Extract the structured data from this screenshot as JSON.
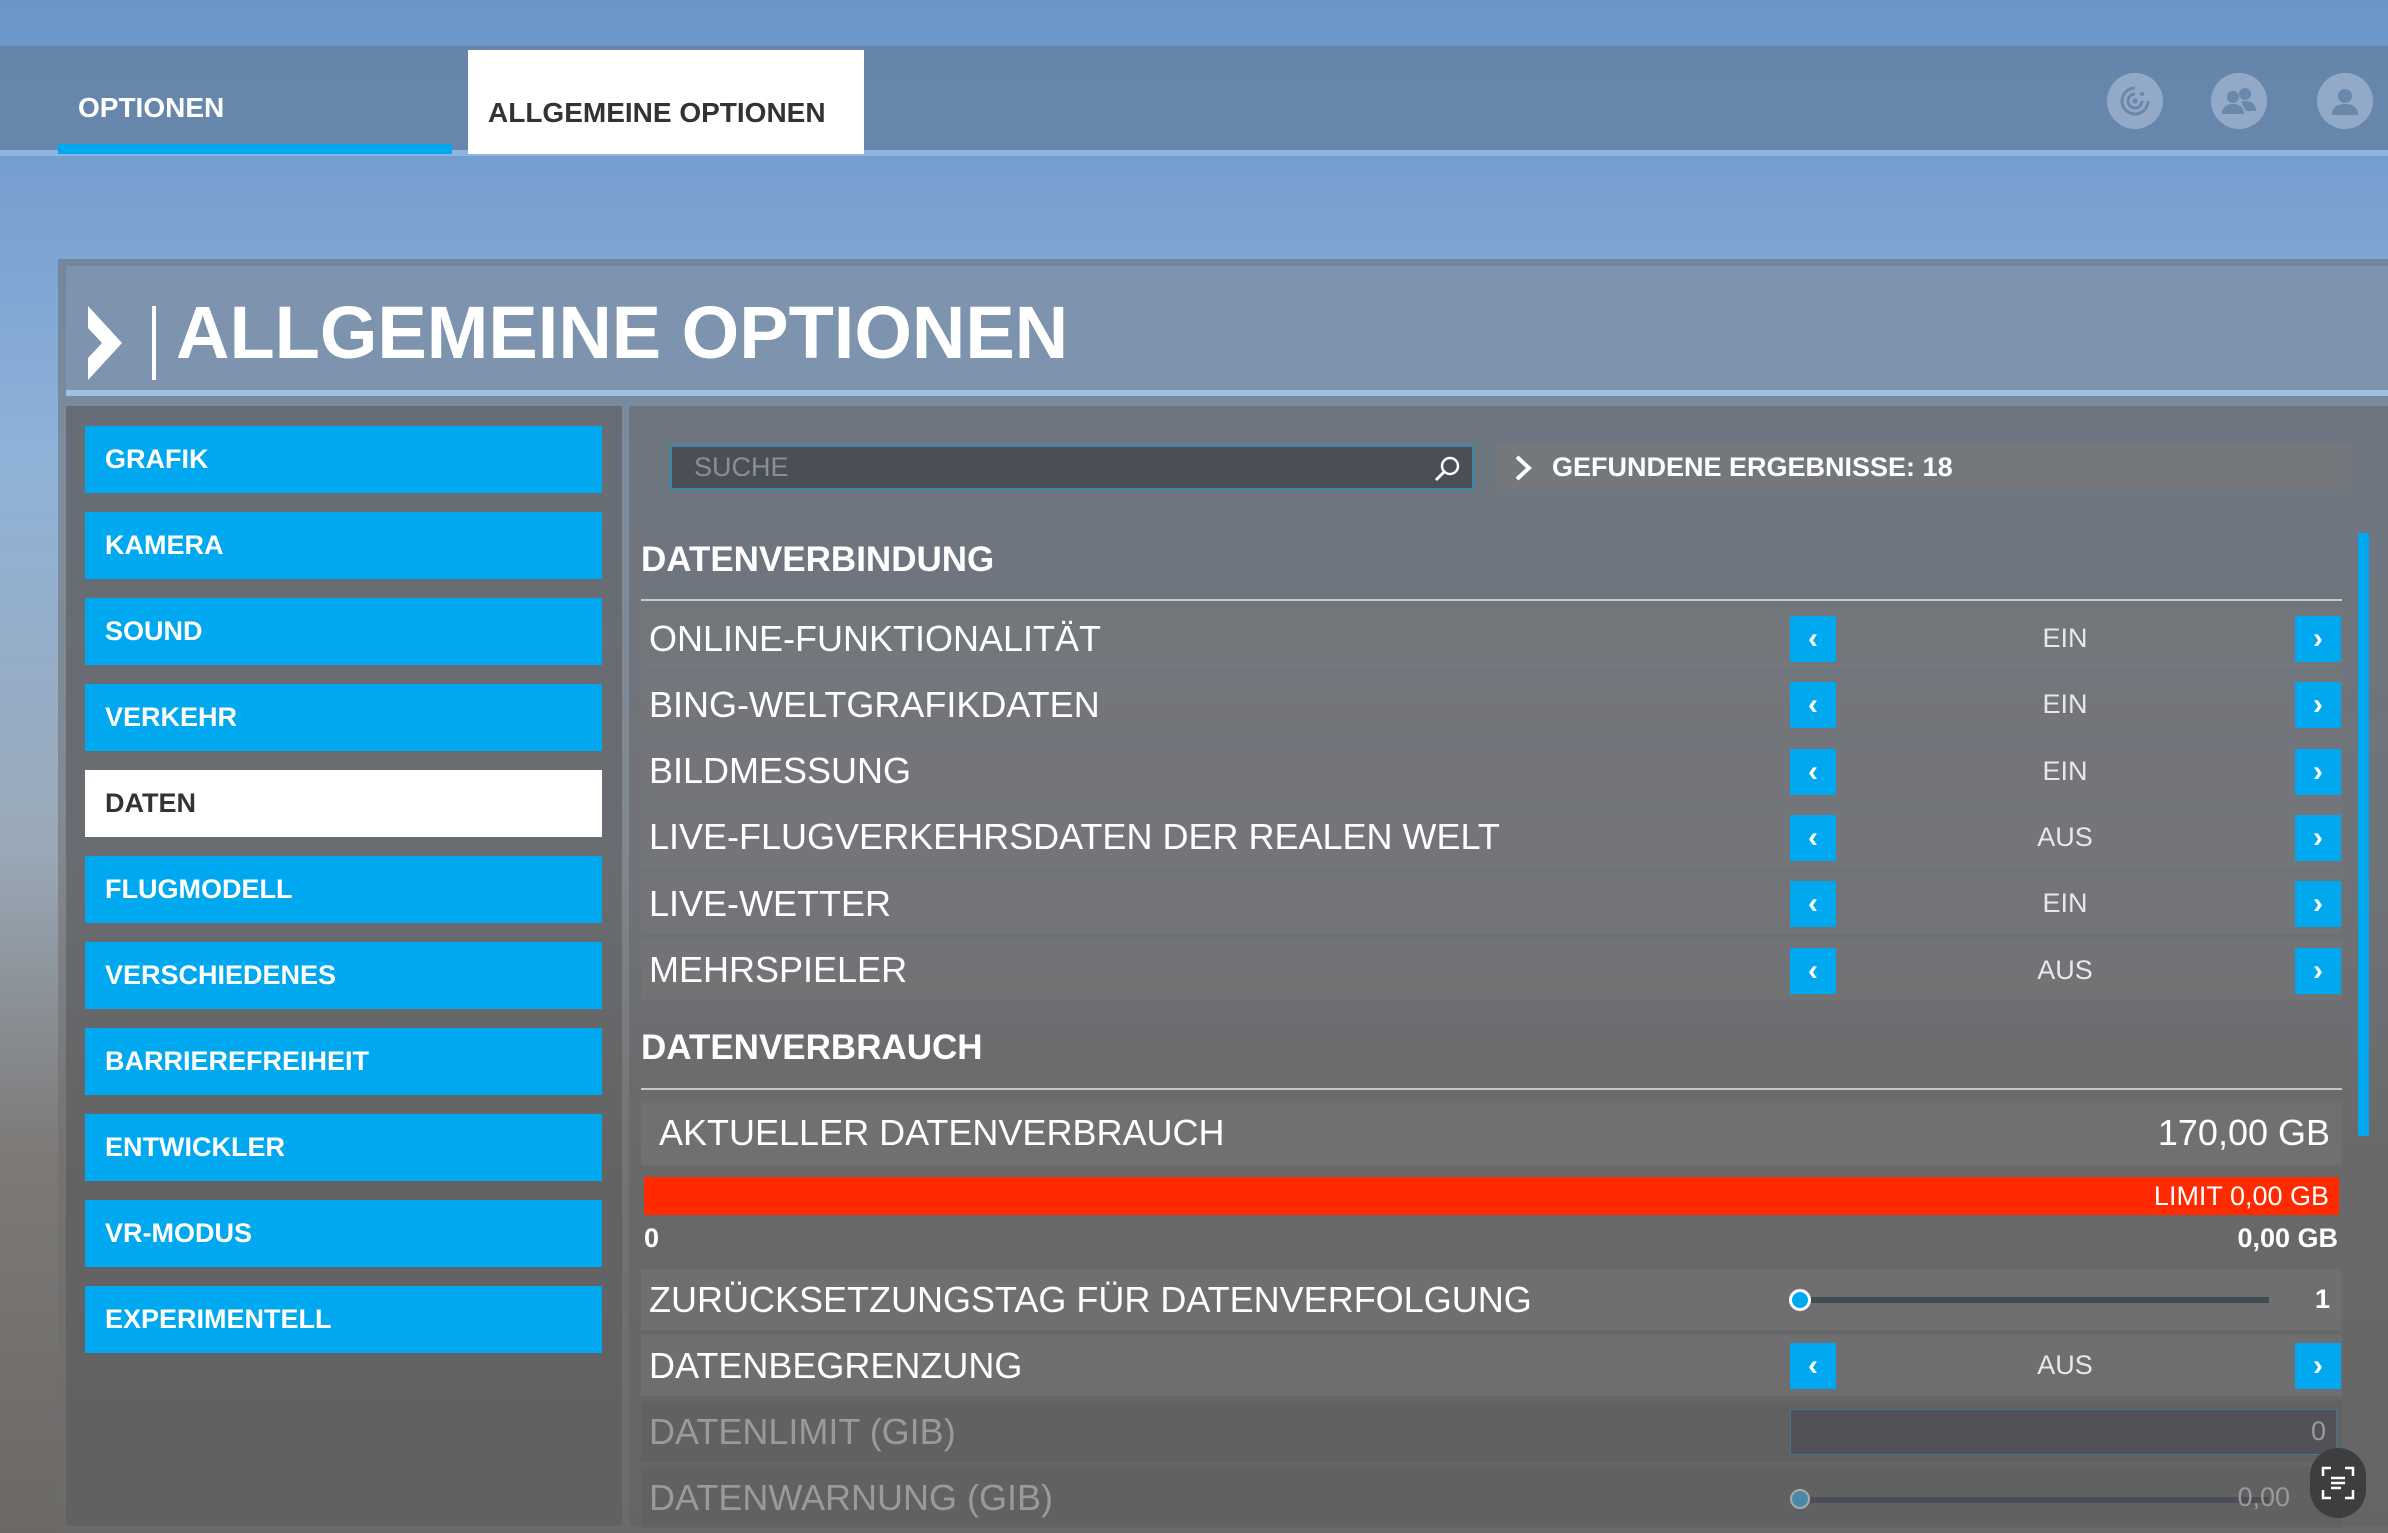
{
  "topbar": {
    "tabs": [
      {
        "label": "OPTIONEN"
      },
      {
        "label": "ALLGEMEINE OPTIONEN"
      }
    ],
    "icons": [
      "activity-icon",
      "friends-icon",
      "profile-icon"
    ]
  },
  "page_title": "ALLGEMEINE OPTIONEN",
  "sidebar": {
    "items": [
      {
        "label": "GRAFIK"
      },
      {
        "label": "KAMERA"
      },
      {
        "label": "SOUND"
      },
      {
        "label": "VERKEHR"
      },
      {
        "label": "DATEN",
        "active": true
      },
      {
        "label": "FLUGMODELL"
      },
      {
        "label": "VERSCHIEDENES"
      },
      {
        "label": "BARRIEREFREIHEIT"
      },
      {
        "label": "ENTWICKLER"
      },
      {
        "label": "VR-MODUS"
      },
      {
        "label": "EXPERIMENTELL"
      }
    ]
  },
  "search": {
    "placeholder": "SUCHE",
    "results": "GEFUNDENE ERGEBNISSE: 18"
  },
  "sections": {
    "connection": {
      "title": "DATENVERBINDUNG",
      "rows": [
        {
          "label": "ONLINE-FUNKTIONALITÄT",
          "value": "EIN"
        },
        {
          "label": "BING-WELTGRAFIKDATEN",
          "value": "EIN"
        },
        {
          "label": "BILDMESSUNG",
          "value": "EIN"
        },
        {
          "label": "LIVE-FLUGVERKEHRSDATEN DER REALEN WELT",
          "value": "AUS"
        },
        {
          "label": "LIVE-WETTER",
          "value": "EIN"
        },
        {
          "label": "MEHRSPIELER",
          "value": "AUS"
        }
      ]
    },
    "usage": {
      "title": "DATENVERBRAUCH",
      "current_label": "AKTUELLER DATENVERBRAUCH",
      "current_value": "170,00 GB",
      "bar_label": "LIMIT 0,00 GB",
      "bar_fill_percent": 100,
      "bar_color": "#ff2a00",
      "bar_min": "0",
      "bar_max": "0,00 GB",
      "reset_label": "ZURÜCKSETZUNGSTAG FÜR DATENVERFOLGUNG",
      "reset_value": "1",
      "limit_toggle_label": "DATENBEGRENZUNG",
      "limit_toggle_value": "AUS",
      "limit_label": "DATENLIMIT (GIB)",
      "limit_value": "0",
      "warning_label": "DATENWARNUNG (GIB)",
      "warning_value": "0,00"
    }
  },
  "accent": "#00a8f0"
}
